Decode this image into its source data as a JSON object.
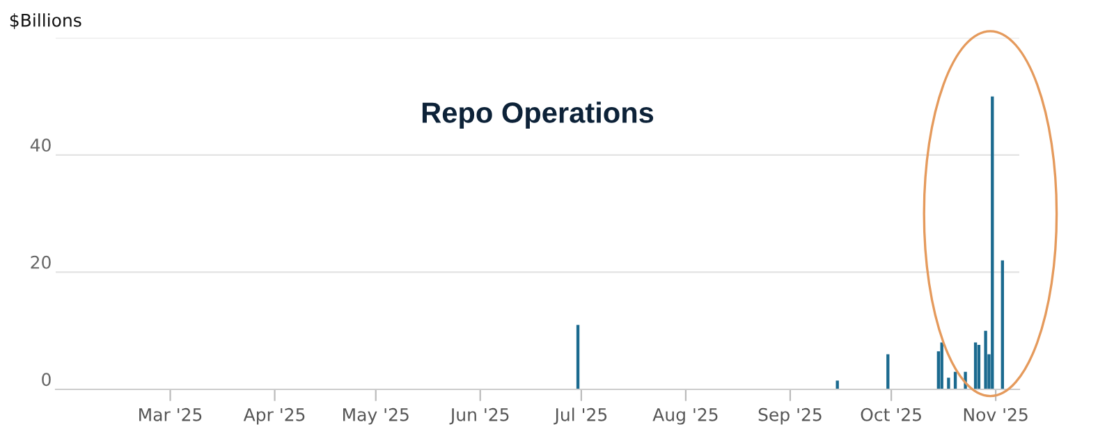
{
  "chart_data": {
    "type": "bar",
    "title": "Repo Operations",
    "ylabel": "$Billions",
    "x": [
      "2025-06-30",
      "2025-09-15",
      "2025-09-30",
      "2025-10-15",
      "2025-10-16",
      "2025-10-18",
      "2025-10-20",
      "2025-10-23",
      "2025-10-26",
      "2025-10-27",
      "2025-10-29",
      "2025-10-30",
      "2025-10-31",
      "2025-11-03"
    ],
    "series": [
      {
        "color": "#1b6a8f",
        "values": [
          11,
          1.5,
          6,
          6.5,
          8,
          2,
          3,
          3,
          8,
          7.6,
          10,
          6,
          50,
          22
        ]
      }
    ],
    "xlim": [
      "2025-01-26",
      "2025-11-08"
    ],
    "xticks": [
      {
        "value": "2025-03-01",
        "label": "Mar '25"
      },
      {
        "value": "2025-04-01",
        "label": "Apr '25"
      },
      {
        "value": "2025-05-01",
        "label": "May '25"
      },
      {
        "value": "2025-06-01",
        "label": "Jun '25"
      },
      {
        "value": "2025-07-01",
        "label": "Jul '25"
      },
      {
        "value": "2025-08-01",
        "label": "Aug '25"
      },
      {
        "value": "2025-09-01",
        "label": "Sep '25"
      },
      {
        "value": "2025-10-01",
        "label": "Oct '25"
      },
      {
        "value": "2025-11-01",
        "label": "Nov '25"
      }
    ],
    "ylim": [
      0,
      60
    ],
    "yticks": [
      0,
      20,
      40,
      {
        "value": 60,
        "label": null
      }
    ],
    "grid": "y",
    "legend": false
  }
}
